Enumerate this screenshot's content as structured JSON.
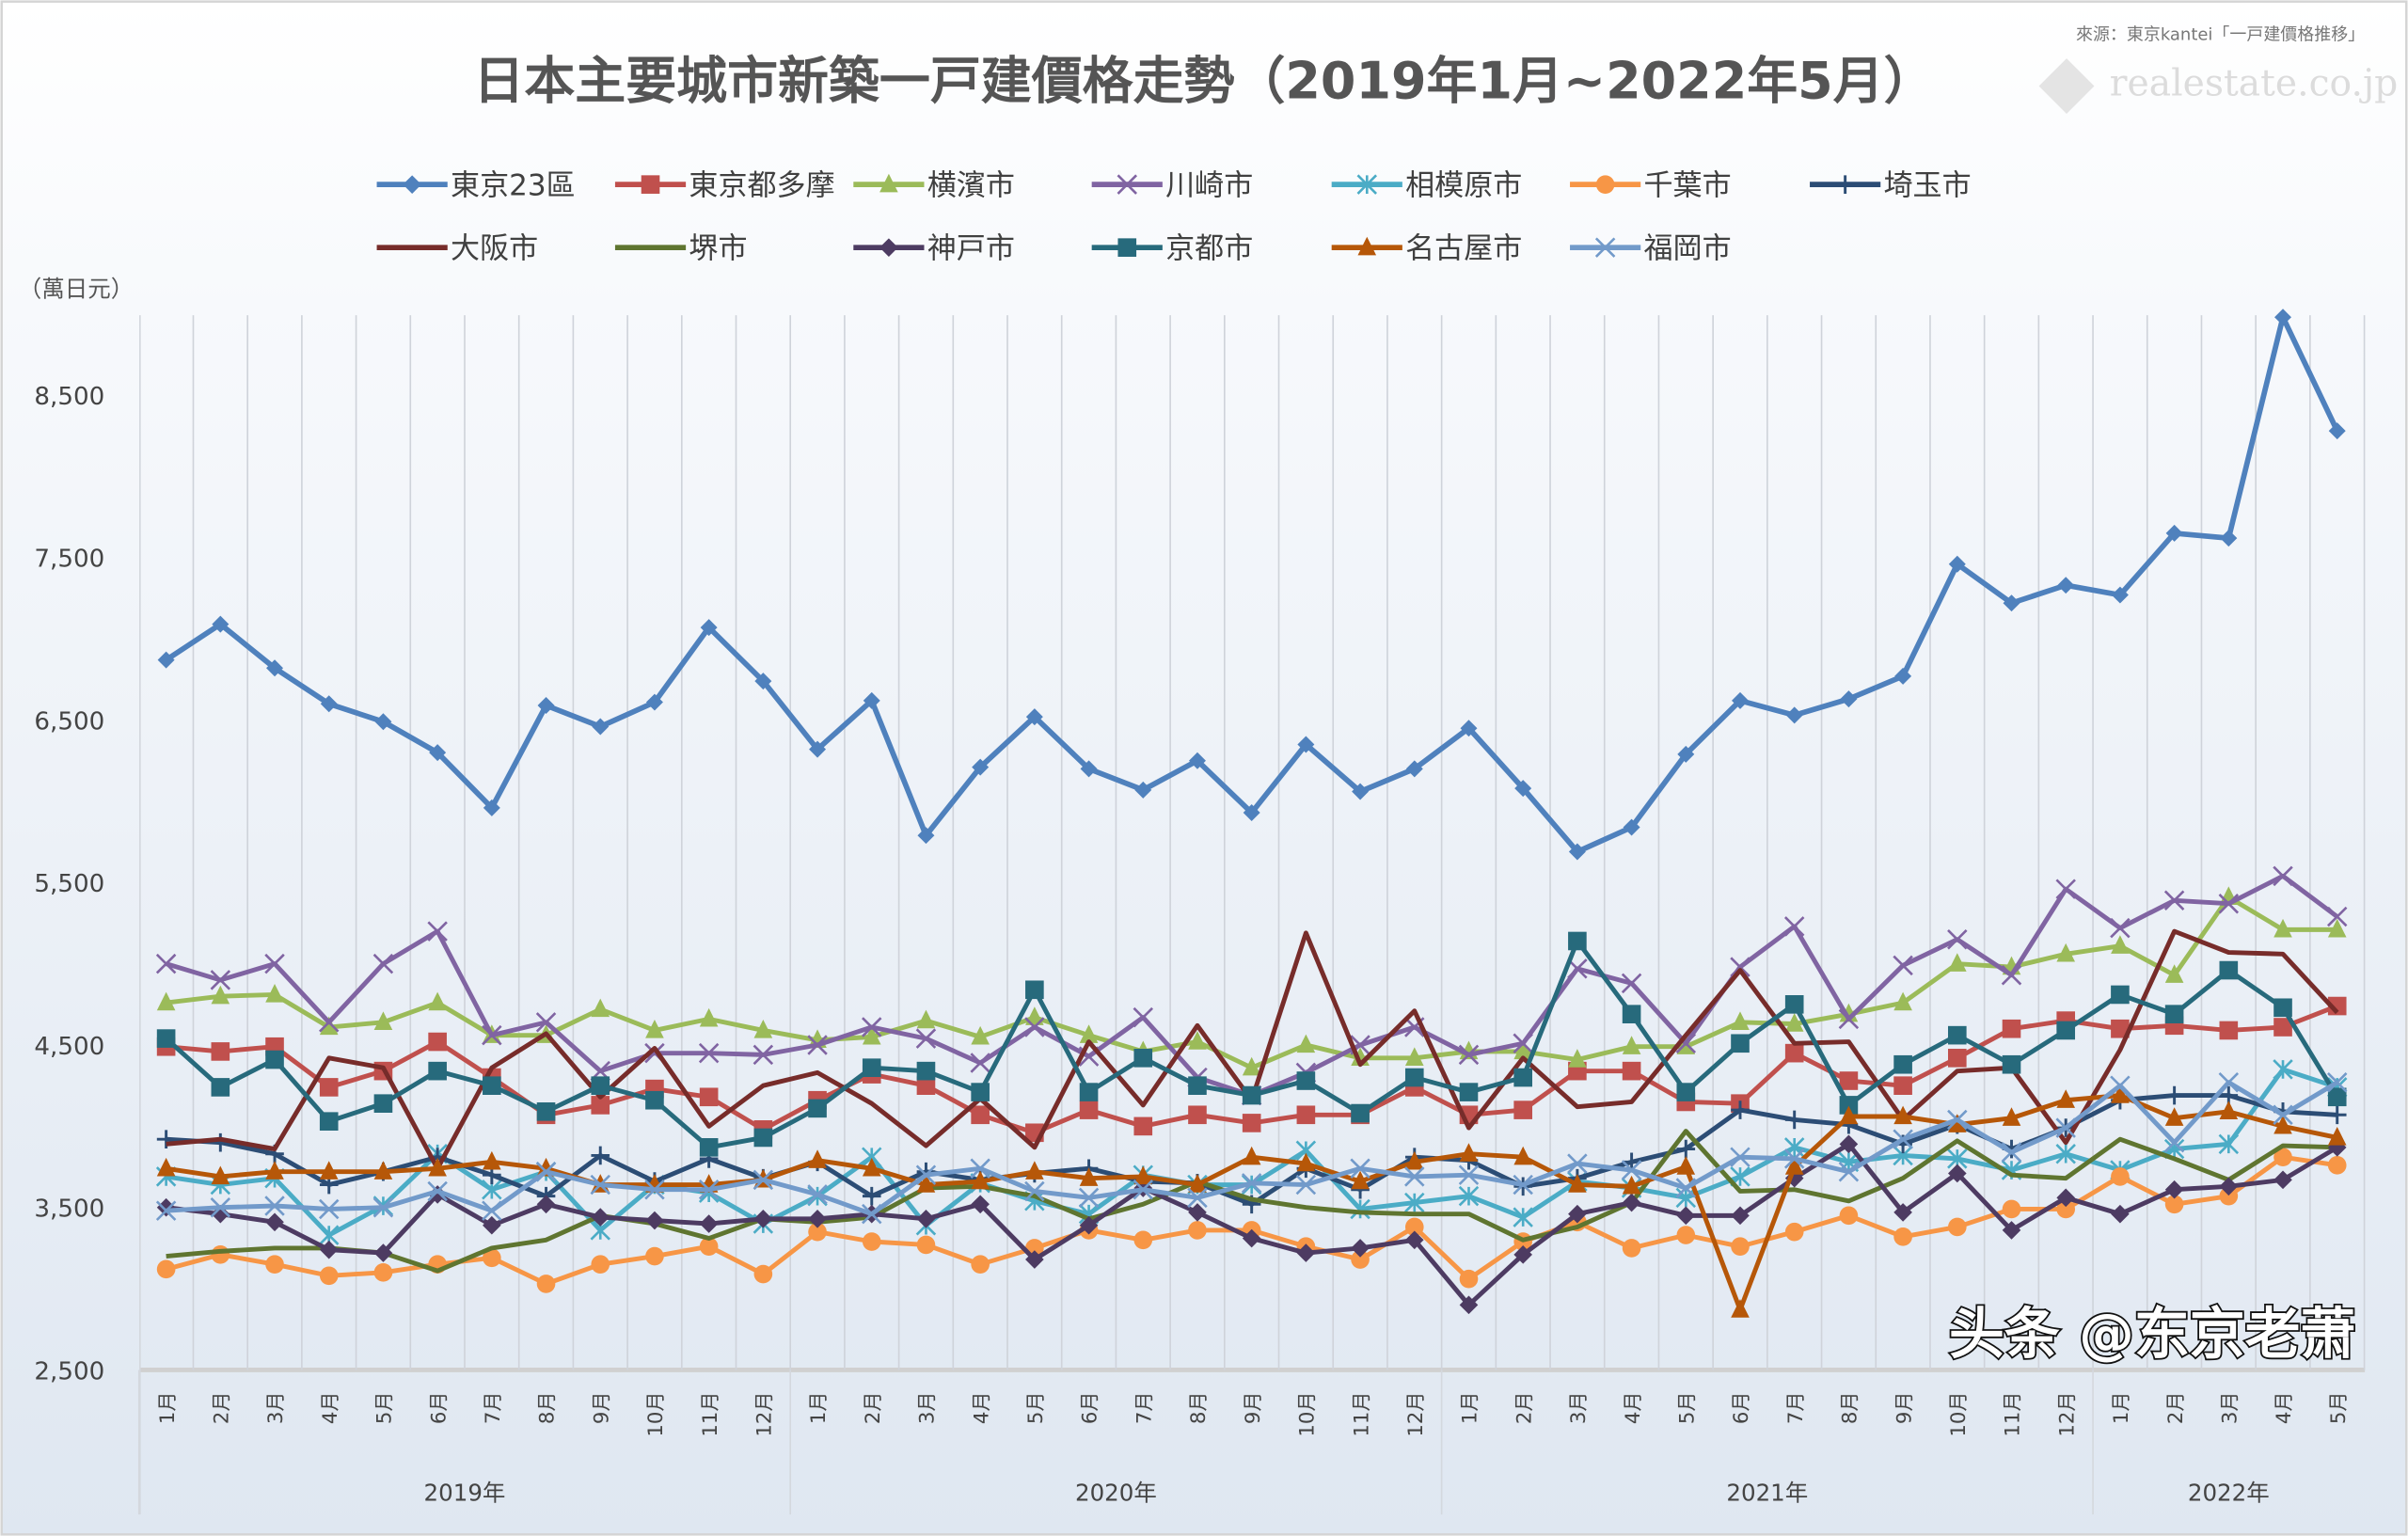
{
  "source_note": "來源：東京kantei「一戸建價格推移」",
  "logo_text": "realestate.co.jp",
  "watermark": "头条 @东京老萧",
  "chart_data": {
    "type": "line",
    "title": "日本主要城市新築一戸建價格走勢（2019年1月~2022年5月）",
    "ylabel": "（萬日元）",
    "ylim": [
      2500,
      9000
    ],
    "yticks": [
      2500,
      3500,
      4500,
      5500,
      6500,
      7500,
      8500
    ],
    "ytick_labels": [
      "2,500",
      "3,500",
      "4,500",
      "5,500",
      "6,500",
      "7,500",
      "8,500"
    ],
    "grid": "vertical",
    "legend_position": "top",
    "year_groups": [
      {
        "label": "2019年",
        "months": [
          "1月",
          "2月",
          "3月",
          "4月",
          "5月",
          "6月",
          "7月",
          "8月",
          "9月",
          "10月",
          "11月",
          "12月"
        ]
      },
      {
        "label": "2020年",
        "months": [
          "1月",
          "2月",
          "3月",
          "4月",
          "5月",
          "6月",
          "7月",
          "8月",
          "9月",
          "10月",
          "11月",
          "12月"
        ]
      },
      {
        "label": "2021年",
        "months": [
          "1月",
          "2月",
          "3月",
          "4月",
          "5月",
          "6月",
          "7月",
          "8月",
          "9月",
          "10月",
          "11月",
          "12月"
        ]
      },
      {
        "label": "2022年",
        "months": [
          "1月",
          "2月",
          "3月",
          "4月",
          "5月"
        ]
      }
    ],
    "series": [
      {
        "name": "東京23區",
        "color": "#4f81bd",
        "marker": "diamond",
        "values": [
          6870,
          7090,
          6820,
          6600,
          6490,
          6300,
          5960,
          6590,
          6460,
          6610,
          7070,
          6740,
          6320,
          6620,
          5790,
          6210,
          6520,
          6200,
          6070,
          6250,
          5930,
          6350,
          6060,
          6200,
          6450,
          6080,
          5690,
          5840,
          6290,
          6620,
          6530,
          6630,
          6770,
          7460,
          7220,
          7330,
          7270,
          7650,
          7620,
          8980,
          8280
        ]
      },
      {
        "name": "東京都多摩",
        "color": "#c0504d",
        "marker": "square",
        "values": [
          4490,
          4460,
          4490,
          4240,
          4340,
          4520,
          4300,
          4070,
          4130,
          4230,
          4180,
          3980,
          4160,
          4320,
          4250,
          4070,
          3960,
          4100,
          4000,
          4070,
          4020,
          4070,
          4070,
          4240,
          4070,
          4100,
          4340,
          4340,
          4150,
          4140,
          4450,
          4280,
          4250,
          4420,
          4600,
          4650,
          4600,
          4620,
          4590,
          4610,
          4740
        ]
      },
      {
        "name": "横濱市",
        "color": "#9bbb59",
        "marker": "triangle",
        "values": [
          4760,
          4800,
          4810,
          4610,
          4640,
          4760,
          4560,
          4560,
          4720,
          4590,
          4660,
          4590,
          4530,
          4550,
          4650,
          4550,
          4670,
          4560,
          4460,
          4520,
          4360,
          4500,
          4420,
          4420,
          4460,
          4460,
          4410,
          4490,
          4490,
          4640,
          4630,
          4690,
          4760,
          5000,
          4980,
          5060,
          5110,
          4930,
          5410,
          5210,
          5210
        ]
      },
      {
        "name": "川崎市",
        "color": "#8064a2",
        "marker": "x",
        "values": [
          5000,
          4900,
          5000,
          4640,
          5000,
          5200,
          4560,
          4640,
          4340,
          4450,
          4450,
          4440,
          4500,
          4610,
          4540,
          4390,
          4610,
          4430,
          4670,
          4300,
          4190,
          4330,
          4500,
          4610,
          4440,
          4510,
          4970,
          4880,
          4510,
          4980,
          5230,
          4660,
          4990,
          5150,
          4930,
          5460,
          5220,
          5390,
          5370,
          5540,
          5290
        ]
      },
      {
        "name": "相模原市",
        "color": "#4bacc6",
        "marker": "asterisk",
        "values": [
          3690,
          3640,
          3680,
          3330,
          3510,
          3830,
          3610,
          3720,
          3360,
          3640,
          3590,
          3400,
          3570,
          3810,
          3390,
          3650,
          3540,
          3460,
          3700,
          3640,
          3640,
          3850,
          3490,
          3530,
          3570,
          3440,
          3660,
          3620,
          3560,
          3690,
          3870,
          3780,
          3820,
          3800,
          3730,
          3830,
          3730,
          3860,
          3890,
          4350,
          4240
        ]
      },
      {
        "name": "千葉市",
        "color": "#f79646",
        "marker": "circle",
        "values": [
          3120,
          3210,
          3150,
          3080,
          3100,
          3150,
          3190,
          3030,
          3150,
          3200,
          3260,
          3090,
          3350,
          3290,
          3270,
          3150,
          3250,
          3360,
          3300,
          3360,
          3360,
          3260,
          3180,
          3380,
          3060,
          3290,
          3410,
          3250,
          3330,
          3260,
          3350,
          3450,
          3320,
          3380,
          3490,
          3490,
          3690,
          3520,
          3570,
          3810,
          3760
        ]
      },
      {
        "name": "埼玉市",
        "color": "#2c4d75",
        "marker": "plus",
        "values": [
          3920,
          3900,
          3830,
          3640,
          3720,
          3810,
          3700,
          3570,
          3820,
          3660,
          3800,
          3680,
          3780,
          3570,
          3720,
          3670,
          3710,
          3740,
          3660,
          3650,
          3520,
          3740,
          3610,
          3810,
          3790,
          3630,
          3680,
          3780,
          3860,
          4100,
          4040,
          4010,
          3890,
          4010,
          3860,
          3990,
          4160,
          4190,
          4190,
          4090,
          4070
        ]
      },
      {
        "name": "大阪市",
        "color": "#772c2a",
        "marker": "none",
        "values": [
          3890,
          3920,
          3860,
          4420,
          4360,
          3740,
          4360,
          4570,
          4180,
          4480,
          4000,
          4250,
          4330,
          4140,
          3880,
          4170,
          3870,
          4520,
          4130,
          4620,
          4160,
          5190,
          4380,
          4710,
          3990,
          4420,
          4120,
          4150,
          4560,
          4960,
          4510,
          4520,
          4040,
          4340,
          4360,
          3900,
          4470,
          5200,
          5070,
          5060,
          4700
        ]
      },
      {
        "name": "堺市",
        "color": "#5f7530",
        "marker": "none",
        "values": [
          3200,
          3230,
          3250,
          3250,
          3220,
          3110,
          3250,
          3300,
          3450,
          3400,
          3310,
          3430,
          3410,
          3440,
          3620,
          3630,
          3570,
          3430,
          3520,
          3660,
          3550,
          3500,
          3470,
          3460,
          3460,
          3300,
          3380,
          3530,
          3970,
          3600,
          3610,
          3540,
          3680,
          3910,
          3700,
          3680,
          3920,
          3800,
          3670,
          3880,
          3870
        ]
      },
      {
        "name": "神戸市",
        "color": "#4d3b62",
        "marker": "diamond",
        "values": [
          3500,
          3460,
          3410,
          3240,
          3220,
          3580,
          3390,
          3520,
          3440,
          3420,
          3400,
          3430,
          3430,
          3460,
          3430,
          3520,
          3180,
          3390,
          3620,
          3470,
          3310,
          3220,
          3250,
          3300,
          2900,
          3210,
          3460,
          3530,
          3450,
          3450,
          3680,
          3890,
          3470,
          3710,
          3360,
          3560,
          3460,
          3610,
          3630,
          3670,
          3870
        ]
      },
      {
        "name": "京都市",
        "color": "#276a7c",
        "marker": "square",
        "values": [
          4540,
          4240,
          4410,
          4030,
          4140,
          4340,
          4250,
          4090,
          4250,
          4160,
          3870,
          3930,
          4110,
          4360,
          4340,
          4210,
          4840,
          4210,
          4420,
          4250,
          4190,
          4280,
          4080,
          4300,
          4210,
          4300,
          5140,
          4690,
          4210,
          4510,
          4750,
          4130,
          4380,
          4560,
          4380,
          4590,
          4810,
          4690,
          4960,
          4730,
          4180
        ]
      },
      {
        "name": "名古屋市",
        "color": "#b65708",
        "marker": "triangle",
        "values": [
          3740,
          3690,
          3720,
          3720,
          3720,
          3740,
          3780,
          3740,
          3640,
          3640,
          3640,
          3670,
          3790,
          3740,
          3640,
          3660,
          3720,
          3680,
          3690,
          3640,
          3810,
          3770,
          3660,
          3780,
          3830,
          3810,
          3640,
          3630,
          3750,
          2870,
          3750,
          4060,
          4060,
          4010,
          4050,
          4160,
          4190,
          4050,
          4090,
          4000,
          3930
        ]
      },
      {
        "name": "福岡市",
        "color": "#729aca",
        "marker": "x",
        "values": [
          3480,
          3500,
          3510,
          3490,
          3500,
          3600,
          3480,
          3720,
          3640,
          3610,
          3610,
          3670,
          3580,
          3460,
          3700,
          3740,
          3600,
          3560,
          3610,
          3560,
          3650,
          3640,
          3740,
          3690,
          3700,
          3640,
          3770,
          3730,
          3620,
          3810,
          3800,
          3720,
          3920,
          4040,
          3840,
          3990,
          4250,
          3900,
          4270,
          4070,
          4270
        ]
      }
    ]
  }
}
